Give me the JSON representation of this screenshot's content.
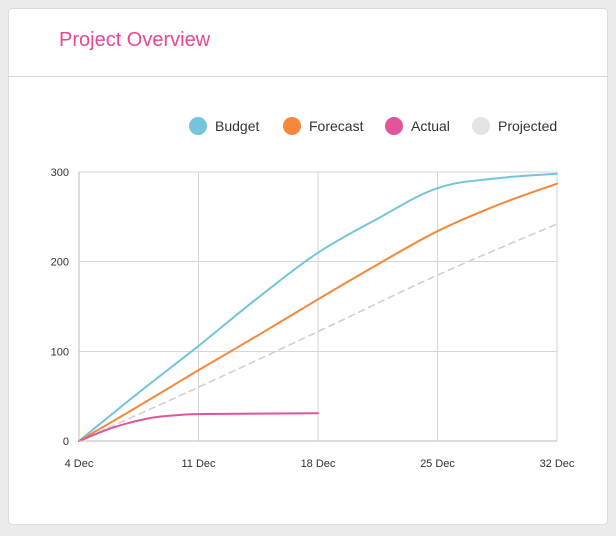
{
  "card": {
    "title": "Project Overview"
  },
  "colors": {
    "title": "#e9478f",
    "grid": "#d6d6d6",
    "axis_text": "#333333"
  },
  "chart_data": {
    "type": "line",
    "x_unit": "days",
    "x": [
      0,
      7,
      14,
      21,
      28
    ],
    "x_tick_labels": [
      "4 Dec",
      "11 Dec",
      "18 Dec",
      "25 Dec",
      "32 Dec"
    ],
    "ylim": [
      0,
      300
    ],
    "y_ticks": [
      0,
      100,
      200,
      300
    ],
    "xlim": [
      0,
      28
    ],
    "grid": true,
    "legend_position": "top-right",
    "series": [
      {
        "name": "Budget",
        "color": "#74c5dc",
        "style": "solid",
        "x": [
          0,
          3.5,
          7,
          10.5,
          14,
          17.5,
          21,
          24.5,
          28
        ],
        "y": [
          0,
          54,
          106,
          160,
          210,
          248,
          282,
          293,
          298
        ]
      },
      {
        "name": "Forecast",
        "color": "#f5883b",
        "style": "solid",
        "x": [
          0,
          3.5,
          7,
          10.5,
          14,
          17.5,
          21,
          24.5,
          28
        ],
        "y": [
          0,
          39,
          79,
          118,
          158,
          197,
          234,
          263,
          287
        ]
      },
      {
        "name": "Actual",
        "color": "#e2549b",
        "style": "solid",
        "x": [
          0,
          2,
          4,
          5.5,
          7,
          10.5,
          14
        ],
        "y": [
          0,
          15,
          25,
          28.5,
          30,
          30.5,
          31
        ]
      },
      {
        "name": "Projected",
        "color": "#d0d0d0",
        "legend_color": "#e4e4e4",
        "style": "dashed",
        "x": [
          0,
          7,
          14,
          21,
          28
        ],
        "y": [
          0,
          60,
          122,
          185,
          242
        ]
      }
    ]
  }
}
